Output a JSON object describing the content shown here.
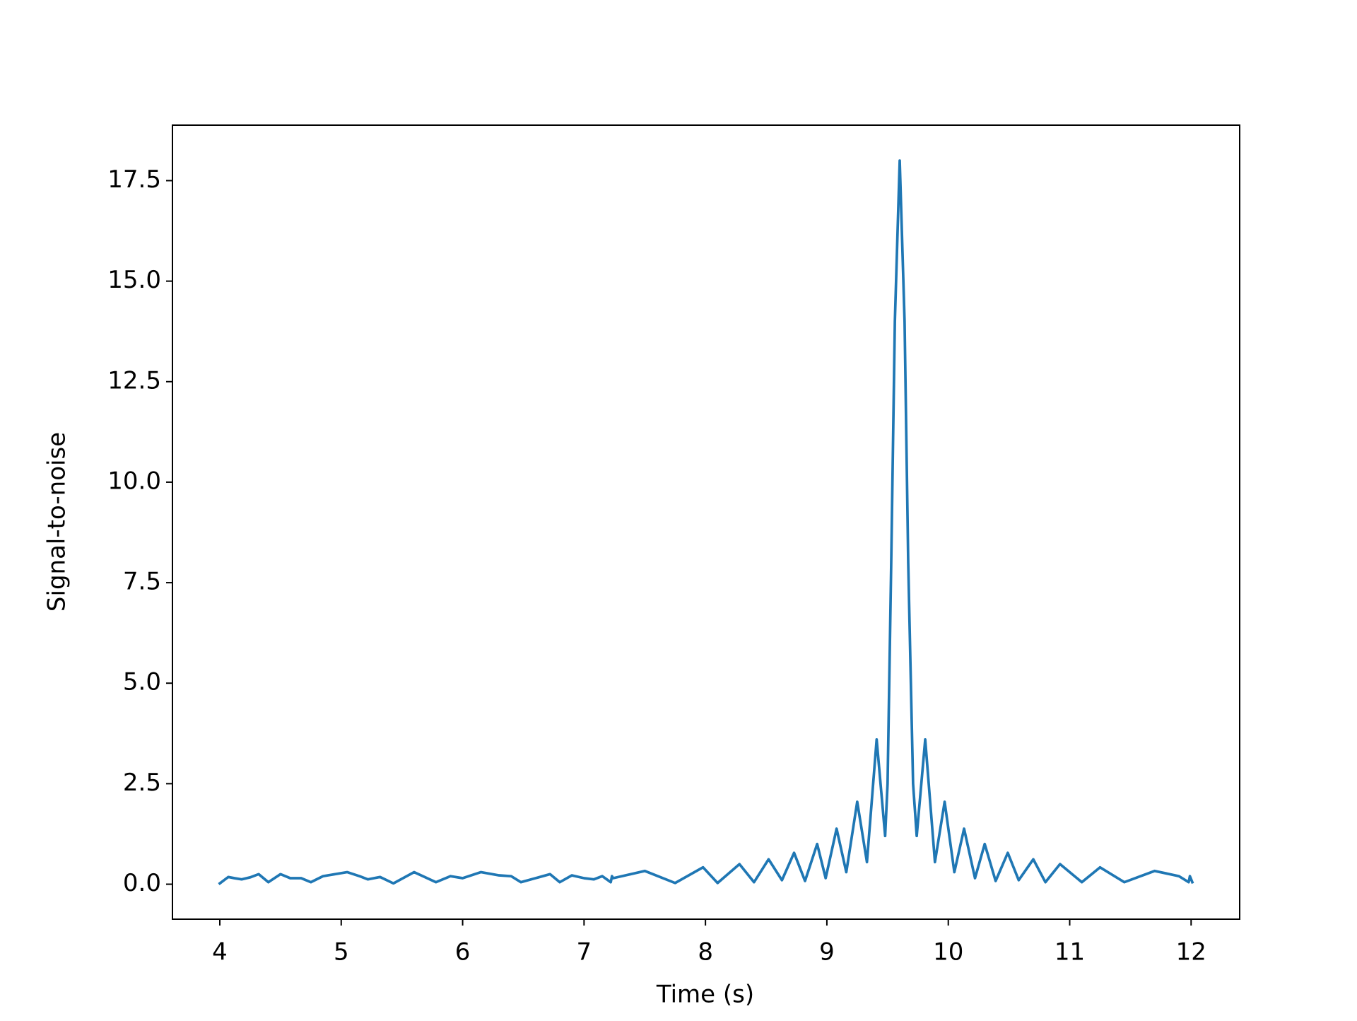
{
  "chart_data": {
    "type": "line",
    "x_label": "Time (s)",
    "y_label": "Signal-to-noise",
    "xlim": [
      3.61,
      12.4
    ],
    "ylim": [
      -0.87,
      18.88
    ],
    "xticks": [
      4,
      5,
      6,
      7,
      8,
      9,
      10,
      11,
      12
    ],
    "yticks": [
      {
        "value": 0,
        "label": "0.0"
      },
      {
        "value": 2.5,
        "label": "2.5"
      },
      {
        "value": 5,
        "label": "5.0"
      },
      {
        "value": 7.5,
        "label": "7.5"
      },
      {
        "value": 10,
        "label": "10.0"
      },
      {
        "value": 12.5,
        "label": "12.5"
      },
      {
        "value": 15,
        "label": "15.0"
      },
      {
        "value": 17.5,
        "label": "17.5"
      }
    ],
    "grid": false,
    "series": [
      {
        "color": "#1f77b4",
        "x": [
          4.0,
          4.07,
          4.12,
          4.18,
          4.25,
          4.32,
          4.4,
          4.5,
          4.58,
          4.67,
          4.75,
          4.85,
          4.95,
          5.05,
          5.15,
          5.22,
          5.32,
          5.43,
          5.6,
          5.78,
          5.9,
          6.0,
          6.15,
          6.3,
          6.4,
          6.48,
          6.6,
          6.72,
          6.8,
          6.9,
          7.0,
          7.08,
          7.15,
          7.22,
          7.23,
          7.24,
          7.5,
          7.75,
          7.98,
          8.1,
          8.28,
          8.4,
          8.52,
          8.63,
          8.73,
          8.82,
          8.92,
          8.99,
          9.08,
          9.16,
          9.25,
          9.33,
          9.41,
          9.48,
          9.5,
          9.53,
          9.56,
          9.6,
          9.64,
          9.67,
          9.71,
          9.74,
          9.81,
          9.89,
          9.97,
          10.05,
          10.13,
          10.22,
          10.3,
          10.39,
          10.49,
          10.58,
          10.7,
          10.8,
          10.92,
          11.1,
          11.25,
          11.45,
          11.7,
          11.9,
          11.98,
          11.99,
          12.01
        ],
        "values": [
          0.02,
          0.18,
          0.15,
          0.12,
          0.17,
          0.25,
          0.05,
          0.25,
          0.15,
          0.15,
          0.05,
          0.2,
          0.25,
          0.3,
          0.2,
          0.12,
          0.18,
          0.02,
          0.3,
          0.05,
          0.2,
          0.15,
          0.3,
          0.22,
          0.2,
          0.05,
          0.15,
          0.25,
          0.05,
          0.22,
          0.15,
          0.12,
          0.2,
          0.05,
          0.2,
          0.15,
          0.33,
          0.03,
          0.42,
          0.03,
          0.5,
          0.05,
          0.62,
          0.1,
          0.78,
          0.08,
          1.0,
          0.15,
          1.38,
          0.3,
          2.05,
          0.55,
          3.6,
          1.2,
          2.5,
          8,
          14,
          18.0,
          14,
          8,
          2.5,
          1.2,
          3.6,
          0.55,
          2.05,
          0.3,
          1.38,
          0.15,
          1.0,
          0.08,
          0.78,
          0.1,
          0.62,
          0.05,
          0.5,
          0.05,
          0.42,
          0.05,
          0.33,
          0.2,
          0.05,
          0.2,
          0.05
        ]
      }
    ]
  }
}
